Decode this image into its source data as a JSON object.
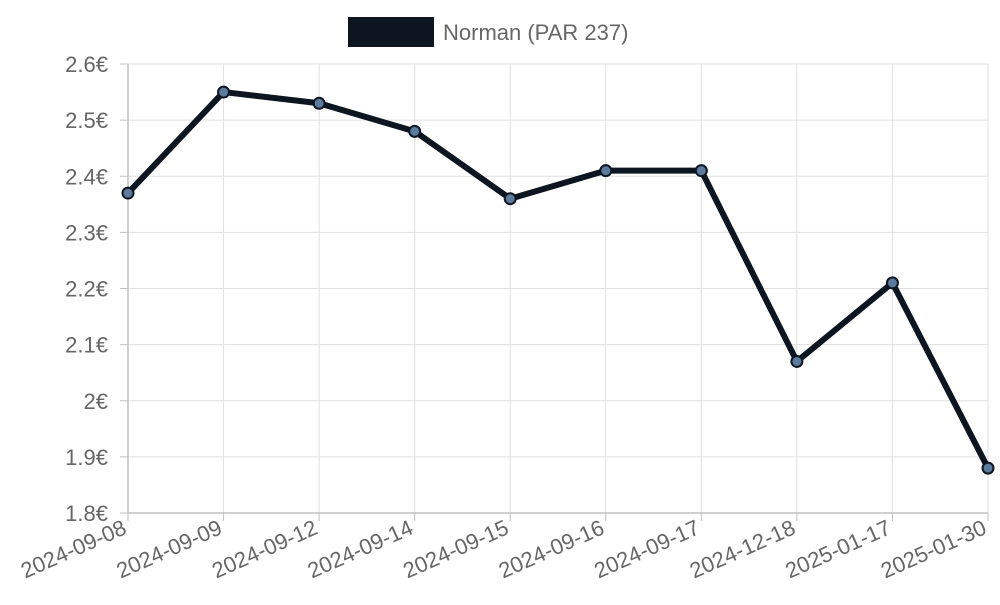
{
  "chart_data": {
    "type": "line",
    "x": [
      "2024-09-08",
      "2024-09-09",
      "2024-09-12",
      "2024-09-14",
      "2024-09-15",
      "2024-09-16",
      "2024-09-17",
      "2024-12-18",
      "2025-01-17",
      "2025-01-30"
    ],
    "series": [
      {
        "name": "Norman (PAR 237)",
        "values": [
          2.37,
          2.55,
          2.53,
          2.48,
          2.36,
          2.41,
          2.41,
          2.07,
          2.21,
          1.88
        ]
      }
    ],
    "y_ticks": [
      "1.8€",
      "1.9€",
      "2€",
      "2.1€",
      "2.2€",
      "2.3€",
      "2.4€",
      "2.5€",
      "2.6€"
    ],
    "y_tick_values": [
      1.8,
      1.9,
      2.0,
      2.1,
      2.2,
      2.3,
      2.4,
      2.5,
      2.6
    ],
    "ylim": [
      1.8,
      2.6
    ],
    "grid": true,
    "legend_position": "top-center",
    "colors": {
      "line": "#0d1521",
      "marker_fill": "#5b7a9c",
      "grid": "#e0e0e0",
      "axis": "#c0c0c0",
      "text": "#666666"
    }
  }
}
